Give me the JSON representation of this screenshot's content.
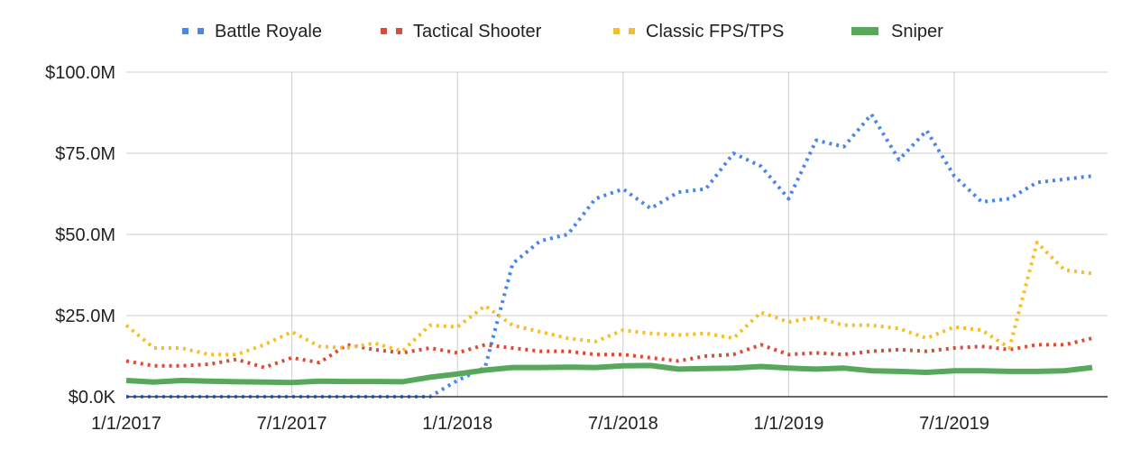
{
  "chart_data": {
    "type": "line",
    "title": "",
    "xlabel": "",
    "ylabel": "",
    "x_tick_labels": [
      "1/1/2017",
      "7/1/2017",
      "1/1/2018",
      "7/1/2018",
      "1/1/2019",
      "7/1/2019"
    ],
    "y_tick_labels": [
      "$0.0K",
      "$25.0M",
      "$50.0M",
      "$75.0M",
      "$100.0M"
    ],
    "ylim": [
      0,
      100
    ],
    "yunit": "$M",
    "grid": true,
    "legend_position": "top",
    "x": [
      "2017-01",
      "2017-02",
      "2017-03",
      "2017-04",
      "2017-05",
      "2017-06",
      "2017-07",
      "2017-08",
      "2017-09",
      "2017-10",
      "2017-11",
      "2017-12",
      "2018-01",
      "2018-02",
      "2018-03",
      "2018-04",
      "2018-05",
      "2018-06",
      "2018-07",
      "2018-08",
      "2018-09",
      "2018-10",
      "2018-11",
      "2018-12",
      "2019-01",
      "2019-02",
      "2019-03",
      "2019-04",
      "2019-05",
      "2019-06",
      "2019-07",
      "2019-08",
      "2019-09",
      "2019-10",
      "2019-11",
      "2019-12"
    ],
    "series": [
      {
        "name": "Battle Royale",
        "color": "#4a86e8",
        "style": "dotted",
        "values": [
          0,
          0,
          0,
          0,
          0,
          0,
          0,
          0,
          0,
          0,
          0,
          0,
          5,
          9,
          41,
          48,
          50,
          61,
          64,
          58,
          63,
          64,
          75,
          71,
          61,
          79,
          77,
          87,
          73,
          82,
          68,
          60,
          61,
          66,
          67,
          68
        ]
      },
      {
        "name": "Tactical Shooter",
        "color": "#dc4a38",
        "style": "dotted",
        "values": [
          11,
          9.5,
          9.5,
          10,
          11.5,
          9,
          12,
          10.5,
          16,
          14.5,
          13.5,
          15,
          13.5,
          16,
          15,
          14,
          14,
          13,
          13,
          12,
          11,
          12.5,
          13,
          16,
          13,
          13.5,
          13,
          14,
          14.5,
          14,
          15,
          15.5,
          14.5,
          16,
          16,
          18
        ]
      },
      {
        "name": "Classic FPS/TPS",
        "color": "#f6bf26",
        "style": "dotted",
        "values": [
          22,
          15,
          15,
          13,
          13,
          16,
          20,
          15.5,
          15,
          16.5,
          14,
          22,
          21.5,
          28,
          22,
          20,
          18,
          17,
          20.5,
          19.5,
          19,
          19.5,
          18,
          26,
          23,
          24.5,
          22,
          22,
          21,
          18,
          21.5,
          20.5,
          15,
          47.5,
          39,
          38
        ]
      },
      {
        "name": "Sniper",
        "color": "#57a85a",
        "style": "solid",
        "values": [
          5,
          4.5,
          5,
          4.8,
          4.6,
          4.5,
          4.4,
          4.8,
          4.7,
          4.7,
          4.6,
          6,
          7,
          8.2,
          9,
          9,
          9.1,
          9,
          9.5,
          9.6,
          8.5,
          8.7,
          8.8,
          9.3,
          8.8,
          8.5,
          8.8,
          8,
          7.8,
          7.5,
          8,
          8,
          7.8,
          7.8,
          8,
          9
        ]
      }
    ]
  }
}
